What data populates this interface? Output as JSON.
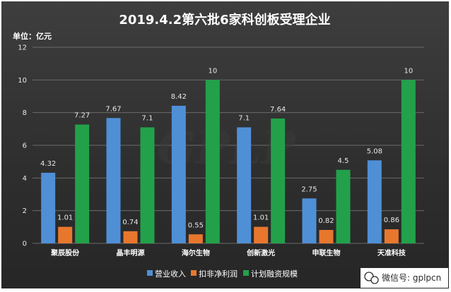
{
  "chart_data": {
    "type": "bar",
    "title": "2019.4.2第六批6家科创板受理企业",
    "unit_label": "单位：亿元",
    "categories": [
      "聚辰股份",
      "晶丰明源",
      "海尔生物",
      "创新激光",
      "申联生物",
      "天准科技"
    ],
    "series": [
      {
        "name": "营业收入",
        "values": [
          4.32,
          7.67,
          8.42,
          7.1,
          2.75,
          5.08
        ],
        "color": "#4f8fd6"
      },
      {
        "name": "扣非净利润",
        "values": [
          1.01,
          0.74,
          0.55,
          1.01,
          0.82,
          0.86
        ],
        "color": "#e8772e"
      },
      {
        "name": "计划融资规模",
        "values": [
          7.27,
          7.1,
          10,
          7.64,
          4.5,
          10
        ],
        "color": "#22a14a"
      }
    ],
    "data_labels": [
      [
        "4.32",
        "7.67",
        "8.42",
        "7.1",
        "2.75",
        "5.08"
      ],
      [
        "1.01",
        "0.74",
        "0.55",
        "1.01",
        "0.82",
        "0.86"
      ],
      [
        "7.27",
        "7.1",
        "10",
        "7.64",
        "4.5",
        "10"
      ]
    ],
    "ylim": [
      0,
      12
    ],
    "yticks": [
      "0",
      "2",
      "4",
      "6",
      "8",
      "10",
      "12"
    ],
    "grid": true,
    "legend_position": "bottom"
  },
  "watermark_text": "GPLP",
  "wechat_label": "微信号: gplpcn"
}
